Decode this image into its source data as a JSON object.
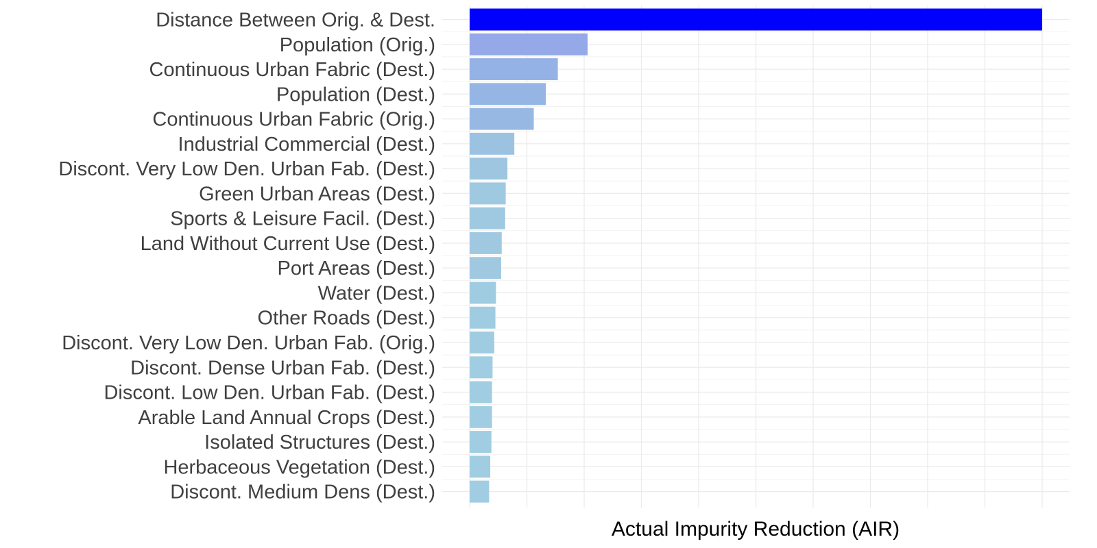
{
  "chart_data": {
    "type": "bar",
    "orientation": "horizontal",
    "categories": [
      "Distance Between Orig. & Dest.",
      "Population (Orig.)",
      "Continuous Urban Fabric (Dest.)",
      "Population (Dest.)",
      "Continuous Urban Fabric (Orig.)",
      "Industrial Commercial (Dest.)",
      "Discont. Very Low Den. Urban Fab. (Dest.)",
      "Green Urban Areas (Dest.)",
      "Sports & Leisure Facil. (Dest.)",
      "Land Without Current Use (Dest.)",
      "Port Areas (Dest.)",
      "Water (Dest.)",
      "Other Roads (Dest.)",
      "Discont. Very Low Den. Urban Fab. (Orig.)",
      "Discont. Dense Urban Fab. (Dest.)",
      "Discont. Low Den. Urban Fab. (Dest.)",
      "Arable Land Annual Crops (Dest.)",
      "Isolated Structures (Dest.)",
      "Herbaceous Vegetation (Dest.)",
      "Discont. Medium Dens (Dest.)"
    ],
    "values": [
      1.0,
      0.206,
      0.154,
      0.133,
      0.112,
      0.078,
      0.066,
      0.063,
      0.062,
      0.056,
      0.055,
      0.046,
      0.045,
      0.043,
      0.04,
      0.039,
      0.039,
      0.038,
      0.036,
      0.034
    ],
    "colors": [
      "#0000ff",
      "#95a8e8",
      "#94b2e6",
      "#95b5e4",
      "#97b8e3",
      "#9cc2e1",
      "#9ec6e1",
      "#9fc8e1",
      "#9fc8e1",
      "#a0c9e1",
      "#a0c9e1",
      "#a0cce1",
      "#a0cce1",
      "#a0cce1",
      "#a0cde1",
      "#a0cde1",
      "#a0cde1",
      "#a0cde1",
      "#a0cde1",
      "#a0cde1"
    ],
    "xlabel": "Actual Impurity Reduction (AIR)",
    "ylabel": "",
    "xlim": [
      0,
      1.0
    ],
    "x_tick_labels_shown": false,
    "grid": true
  }
}
